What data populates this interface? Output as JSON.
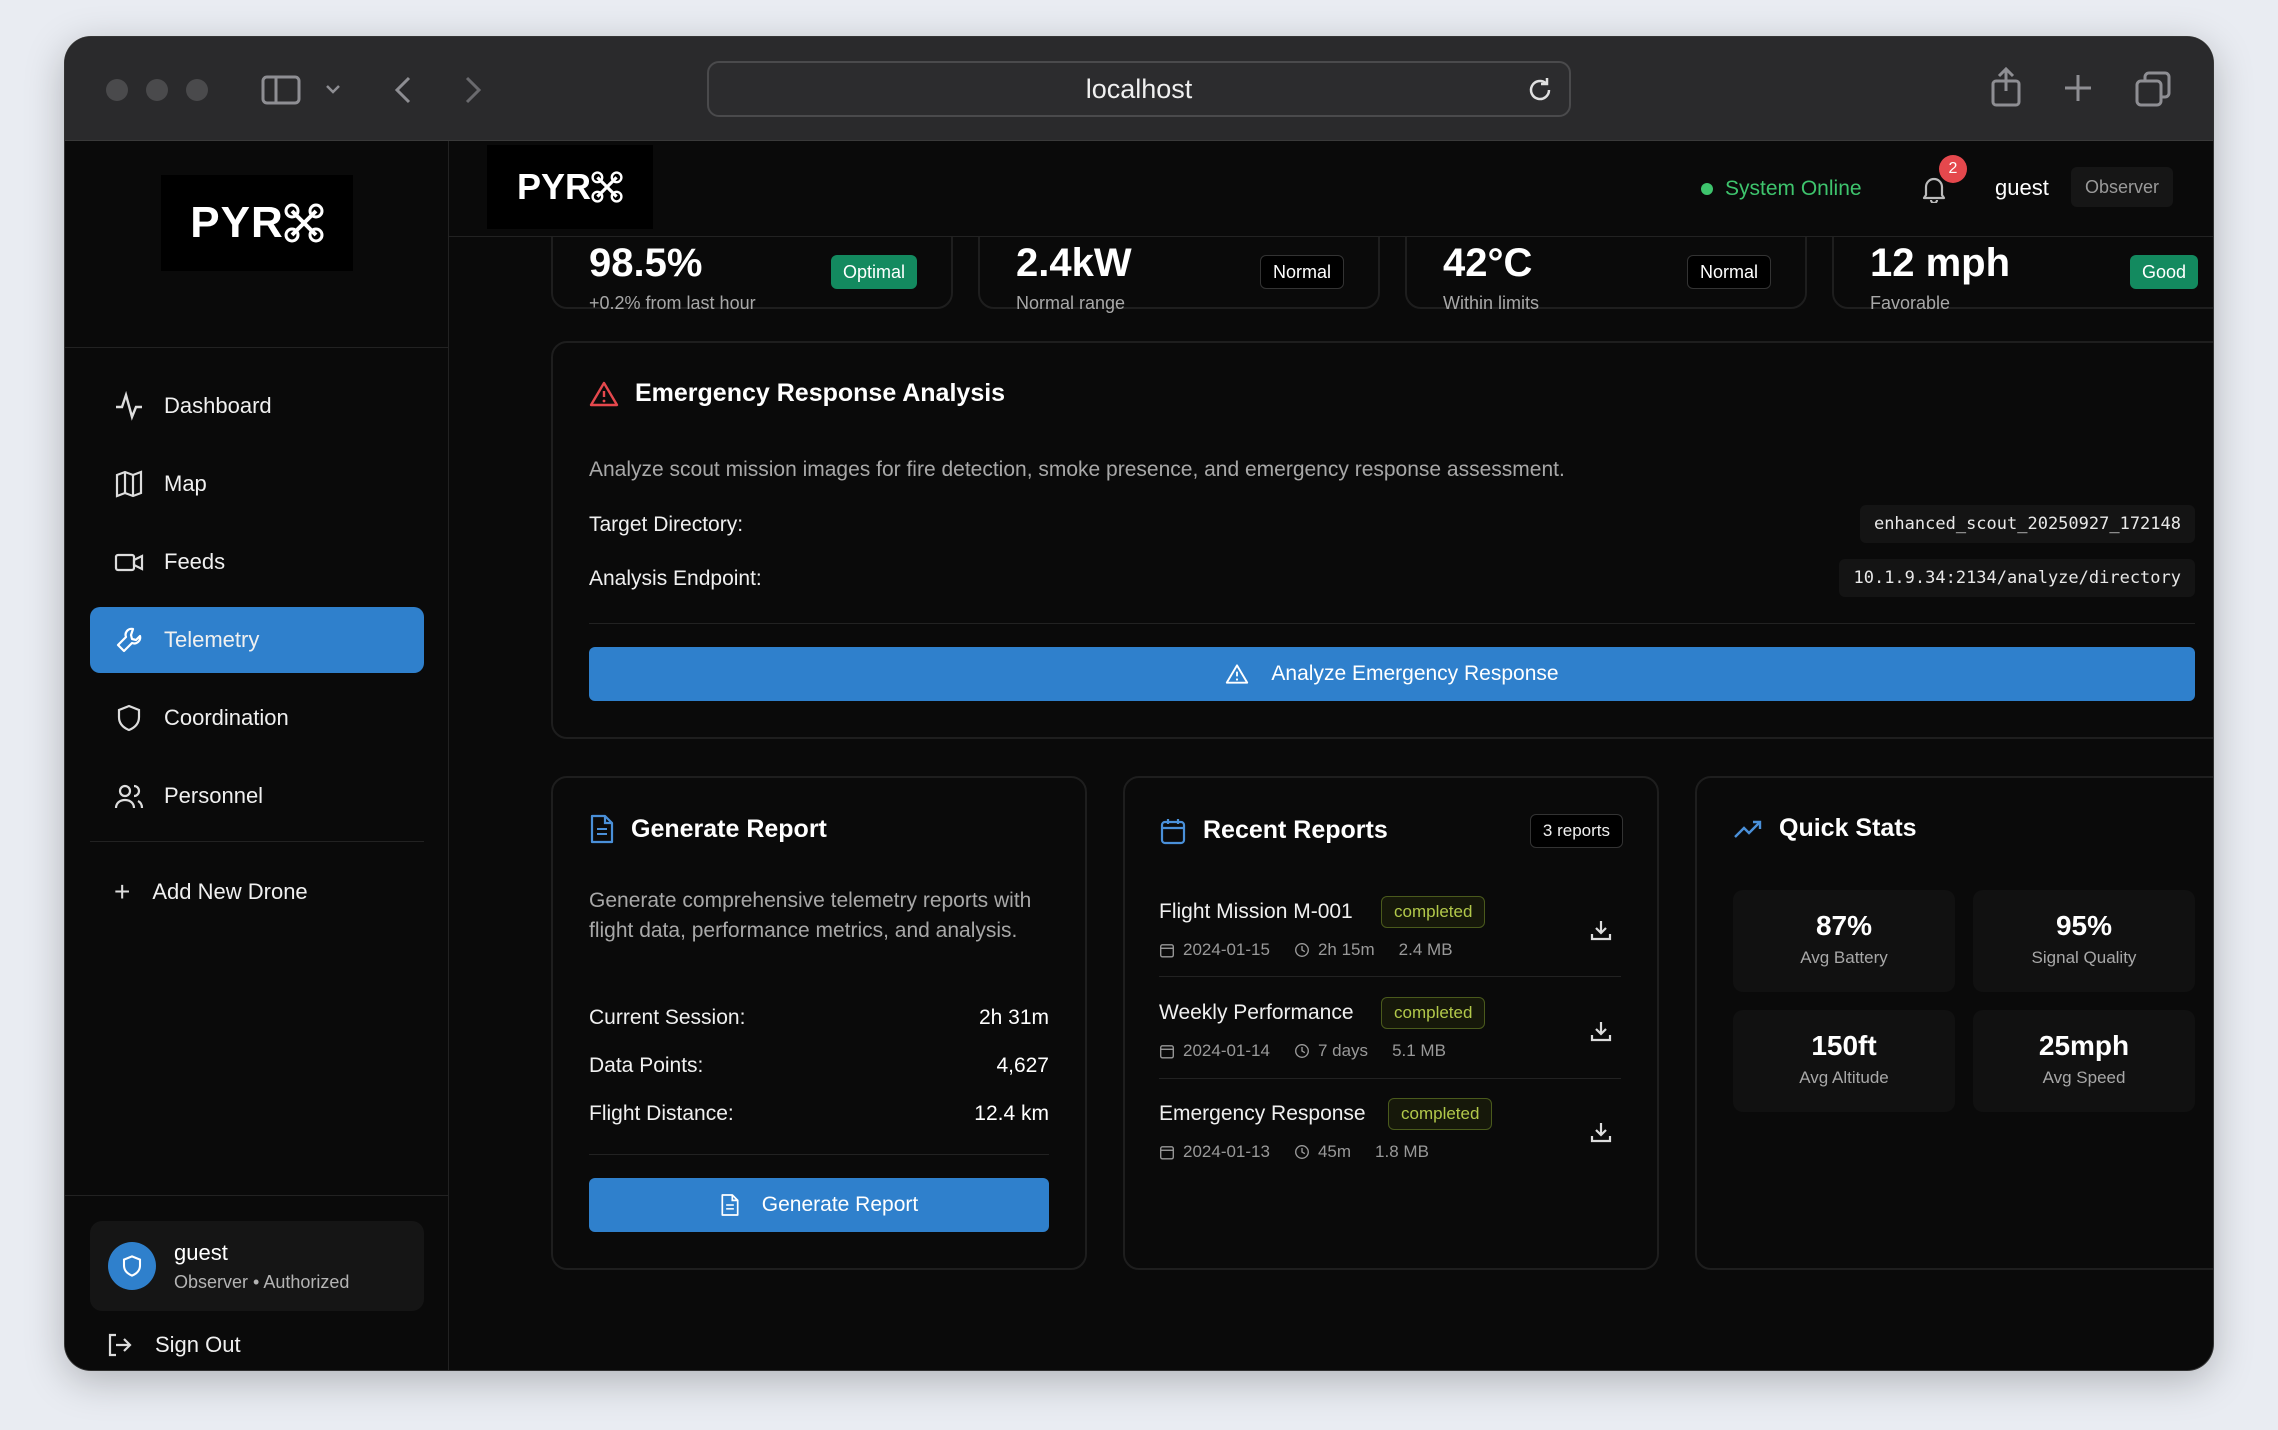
{
  "browser": {
    "url": "localhost"
  },
  "brand": {
    "logo_text": "PYR"
  },
  "sidebar": {
    "items": [
      {
        "label": "Dashboard",
        "icon": "activity-icon",
        "active": false
      },
      {
        "label": "Map",
        "icon": "map-icon",
        "active": false
      },
      {
        "label": "Feeds",
        "icon": "video-icon",
        "active": false
      },
      {
        "label": "Telemetry",
        "icon": "wrench-icon",
        "active": true
      },
      {
        "label": "Coordination",
        "icon": "shield-icon",
        "active": false
      },
      {
        "label": "Personnel",
        "icon": "users-icon",
        "active": false
      }
    ],
    "add_drone_label": "Add New Drone",
    "user": {
      "name": "guest",
      "role": "Observer • Authorized"
    },
    "sign_out_label": "Sign Out"
  },
  "topbar": {
    "status": "System Online",
    "notification_count": "2",
    "user_name": "guest",
    "user_role": "Observer"
  },
  "stats": [
    {
      "value": "98.5%",
      "sub": "+0.2% from last hour",
      "badge": "Optimal",
      "badge_style": "green"
    },
    {
      "value": "2.4kW",
      "sub": "Normal range",
      "badge": "Normal",
      "badge_style": "dark"
    },
    {
      "value": "42°C",
      "sub": "Within limits",
      "badge": "Normal",
      "badge_style": "dark"
    },
    {
      "value": "12 mph",
      "sub": "Favorable",
      "badge": "Good",
      "badge_style": "green"
    }
  ],
  "emergency": {
    "title": "Emergency Response Analysis",
    "description": "Analyze scout mission images for fire detection, smoke presence, and emergency response assessment.",
    "target_label": "Target Directory:",
    "target_value": "enhanced_scout_20250927_172148",
    "endpoint_label": "Analysis Endpoint:",
    "endpoint_value": "10.1.9.34:2134/analyze/directory",
    "button_label": "Analyze Emergency Response"
  },
  "generate_report": {
    "title": "Generate Report",
    "description": "Generate comprehensive telemetry reports with flight data, performance metrics, and analysis.",
    "rows": [
      {
        "label": "Current Session:",
        "value": "2h 31m"
      },
      {
        "label": "Data Points:",
        "value": "4,627"
      },
      {
        "label": "Flight Distance:",
        "value": "12.4 km"
      }
    ],
    "button_label": "Generate Report"
  },
  "recent_reports": {
    "title": "Recent Reports",
    "count_label": "3 reports",
    "items": [
      {
        "name": "Flight Mission M-001",
        "status": "completed",
        "date": "2024-01-15",
        "duration": "2h 15m",
        "size": "2.4 MB"
      },
      {
        "name": "Weekly Performance",
        "status": "completed",
        "date": "2024-01-14",
        "duration": "7 days",
        "size": "5.1 MB"
      },
      {
        "name": "Emergency Response",
        "status": "completed",
        "date": "2024-01-13",
        "duration": "45m",
        "size": "1.8 MB"
      }
    ]
  },
  "quick_stats": {
    "title": "Quick Stats",
    "tiles": [
      {
        "value": "87%",
        "label": "Avg Battery"
      },
      {
        "value": "95%",
        "label": "Signal Quality"
      },
      {
        "value": "150ft",
        "label": "Avg Altitude"
      },
      {
        "value": "25mph",
        "label": "Avg Speed"
      }
    ]
  },
  "colors": {
    "accent": "#2f80cc",
    "success": "#138a5f",
    "online": "#3ec46d",
    "alert": "#e5484d",
    "completed": "#b2c84a"
  }
}
